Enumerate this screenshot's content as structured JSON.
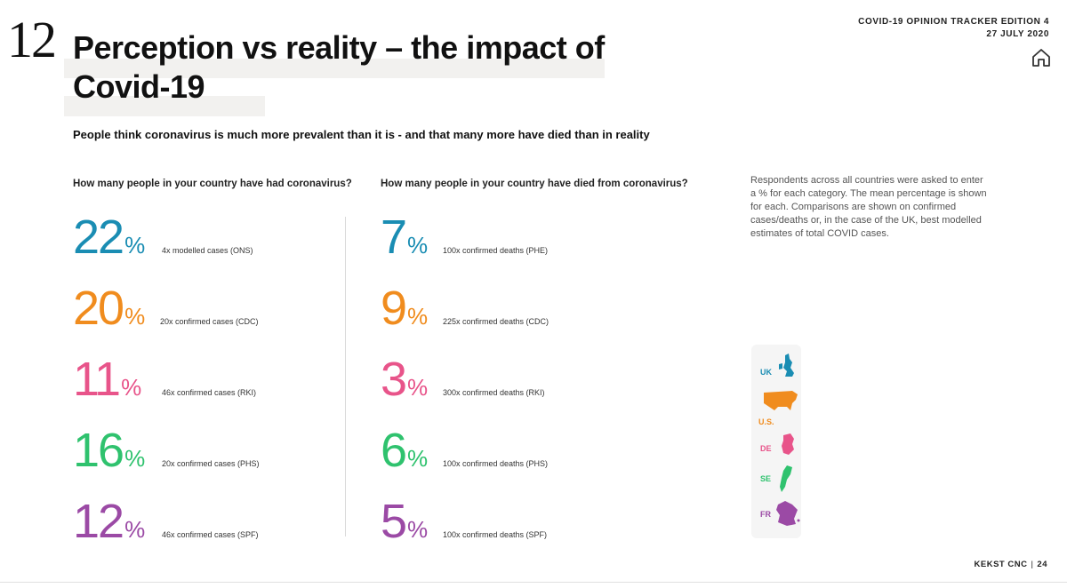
{
  "section_number": "12",
  "header": {
    "tracker_line1": "COVID-19 OPINION TRACKER EDITION 4",
    "tracker_line2": "27 JULY 2020"
  },
  "title": "Perception vs reality – the impact of Covid-19",
  "subtitle": "People think coronavirus is much more prevalent than it is - and that many more have died than in reality",
  "note": "Respondents across all countries were asked to enter a % for each category. The mean percentage is shown for each. Comparisons are shown on confirmed cases/deaths or, in the case of the UK, best modelled estimates of total COVID cases.",
  "footer": {
    "brand": "KEKST CNC",
    "page": "24"
  },
  "colors": {
    "UK": "#1a8db3",
    "U.S.": "#f08c1e",
    "DE": "#e8548a",
    "SE": "#2fc26e",
    "FR": "#9b4aa5"
  },
  "legend": [
    {
      "label": "UK"
    },
    {
      "label": "U.S."
    },
    {
      "label": "DE"
    },
    {
      "label": "SE"
    },
    {
      "label": "FR"
    }
  ],
  "chart_data": {
    "type": "table",
    "title": "Perception vs reality – the impact of Covid-19",
    "unit": "%",
    "countries": [
      "UK",
      "U.S.",
      "DE",
      "SE",
      "FR"
    ],
    "series": [
      {
        "name": "How many people in your country have had coronavirus?",
        "values": [
          "22",
          "20",
          "11",
          "16",
          "12"
        ],
        "captions": [
          "4x modelled cases (ONS)",
          "20x confirmed cases (CDC)",
          "46x confirmed cases (RKI)",
          "20x confirmed cases (PHS)",
          "46x confirmed cases (SPF)"
        ]
      },
      {
        "name": "How many people in your country have died from coronavirus?",
        "values": [
          "7",
          "9",
          "3",
          "6",
          "5"
        ],
        "captions": [
          "100x confirmed deaths (PHE)",
          "225x confirmed deaths (CDC)",
          "300x confirmed deaths (RKI)",
          "100x confirmed deaths (PHS)",
          "100x confirmed deaths (SPF)"
        ]
      }
    ]
  }
}
